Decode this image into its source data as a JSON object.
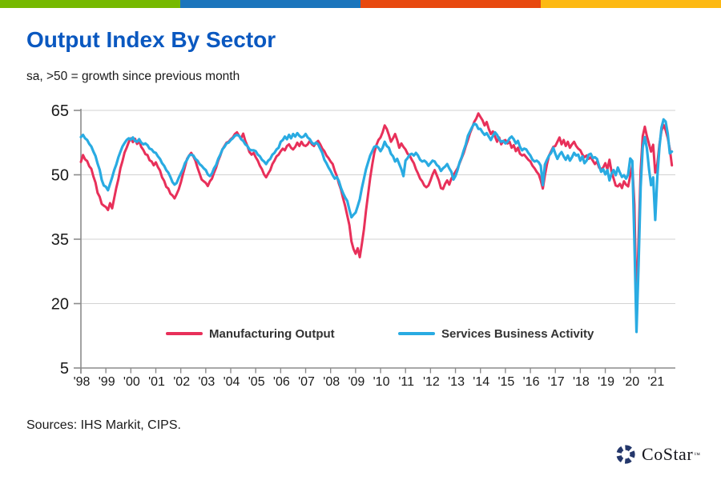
{
  "header": {
    "bar_colors": [
      "#76b900",
      "#1b75bc",
      "#e8490f",
      "#fdb913"
    ],
    "title": "Output Index By Sector",
    "subtitle": "sa, >50 = growth since previous month"
  },
  "footer": {
    "sources": "Sources: IHS Markit, CIPS.",
    "logo_text": "CoStar",
    "logo_tm": "TM",
    "logo_color": "#24376b"
  },
  "chart_data": {
    "type": "line",
    "title": "Output Index By Sector",
    "subtitle": "sa, >50 = growth since previous month",
    "xlabel": "",
    "ylabel": "",
    "ylim": [
      5,
      65
    ],
    "yticks": [
      65,
      50,
      35,
      20,
      5
    ],
    "gridlines": [
      65,
      50,
      35,
      20
    ],
    "grid_on": true,
    "x_start": "1998-01",
    "x_end": "2021-09",
    "x_interval": "monthly",
    "xtick_labels": [
      "'98",
      "'99",
      "'00",
      "'01",
      "'02",
      "'03",
      "'04",
      "'05",
      "'06",
      "'07",
      "'08",
      "'09",
      "'10",
      "'11",
      "'12",
      "'13",
      "'14",
      "'15",
      "'16",
      "'17",
      "'18",
      "'19",
      "'20",
      "'21"
    ],
    "legend_position": "bottom-inside",
    "axis_color": "#8c8c8c",
    "grid_color": "#d2d2d2",
    "tick_label_color": "#1a1a1a",
    "series": [
      {
        "name": "Manufacturing Output",
        "color": "#e8305a",
        "width": 3,
        "values": [
          53.0,
          54.6,
          53.6,
          53.2,
          52.0,
          51.4,
          49.6,
          48.2,
          45.8,
          44.9,
          43.2,
          42.8,
          42.5,
          41.8,
          43.4,
          42.2,
          44.6,
          47.0,
          49.0,
          51.6,
          53.2,
          55.2,
          56.3,
          57.6,
          58.5,
          57.6,
          58.4,
          57.2,
          57.9,
          56.5,
          55.8,
          54.8,
          54.6,
          53.4,
          53.1,
          52.2,
          52.9,
          51.8,
          51.0,
          49.4,
          48.6,
          47.2,
          46.8,
          45.6,
          45.2,
          44.5,
          45.5,
          46.6,
          48.2,
          50.1,
          51.9,
          53.7,
          54.5,
          55.1,
          54.3,
          53.3,
          51.7,
          50.3,
          48.9,
          48.5,
          48.1,
          47.4,
          48.5,
          49.1,
          50.5,
          51.7,
          53.3,
          54.5,
          55.9,
          56.7,
          57.5,
          57.7,
          58.3,
          58.7,
          59.5,
          59.9,
          59.1,
          58.5,
          59.6,
          57.9,
          56.7,
          55.3,
          54.7,
          55.1,
          54.1,
          53.3,
          52.1,
          51.3,
          50.1,
          49.4,
          50.3,
          51.1,
          52.5,
          53.3,
          54.3,
          54.7,
          55.5,
          56.1,
          55.7,
          56.7,
          57.1,
          56.3,
          55.9,
          56.5,
          57.5,
          56.7,
          57.7,
          56.9,
          56.7,
          57.1,
          57.9,
          57.1,
          56.7,
          57.5,
          57.9,
          57.1,
          56.1,
          55.5,
          54.5,
          53.9,
          53.1,
          52.5,
          50.9,
          49.7,
          47.9,
          46.5,
          44.5,
          42.7,
          40.5,
          38.3,
          34.5,
          32.7,
          31.6,
          32.9,
          30.8,
          33.9,
          37.3,
          41.7,
          45.5,
          49.3,
          52.3,
          55.1,
          56.9,
          58.1,
          58.7,
          59.9,
          61.5,
          60.7,
          59.3,
          57.7,
          58.5,
          59.5,
          58.1,
          56.3,
          57.3,
          56.5,
          55.9,
          54.9,
          54.5,
          53.5,
          52.7,
          51.3,
          50.3,
          49.1,
          48.5,
          47.5,
          47.1,
          47.5,
          48.7,
          50.1,
          51.1,
          49.9,
          48.7,
          46.9,
          46.7,
          47.9,
          48.7,
          47.7,
          49.1,
          49.9,
          50.7,
          51.5,
          52.7,
          53.9,
          55.1,
          56.7,
          58.1,
          59.7,
          60.9,
          62.3,
          63.1,
          64.3,
          63.5,
          62.7,
          61.5,
          62.3,
          60.7,
          59.5,
          60.1,
          58.9,
          57.7,
          58.7,
          57.1,
          57.9,
          58.1,
          57.3,
          57.7,
          56.3,
          56.9,
          55.5,
          56.3,
          54.9,
          54.5,
          54.7,
          54.1,
          53.5,
          53.1,
          52.1,
          51.5,
          50.7,
          50.1,
          48.7,
          46.8,
          49.9,
          52.5,
          54.5,
          55.5,
          56.5,
          56.7,
          57.7,
          58.7,
          57.1,
          58.1,
          56.7,
          57.7,
          56.3,
          57.1,
          57.7,
          56.7,
          56.1,
          55.7,
          54.7,
          54.1,
          54.5,
          53.7,
          54.1,
          53.3,
          52.5,
          53.1,
          51.7,
          51.3,
          51.7,
          52.7,
          51.3,
          53.5,
          50.7,
          49.1,
          47.5,
          47.3,
          47.9,
          46.9,
          48.5,
          47.7,
          47.3,
          49.8,
          52.2,
          43.0,
          18.0,
          35.0,
          51.0,
          59.0,
          61.2,
          59.0,
          57.2,
          55.4,
          57.0,
          50.5,
          52.5,
          57.0,
          60.2,
          61.6,
          60.4,
          58.6,
          56.0,
          52.2
        ]
      },
      {
        "name": "Services Business Activity",
        "color": "#29abe2",
        "width": 3.2,
        "values": [
          58.8,
          59.3,
          58.5,
          58.1,
          57.2,
          56.6,
          55.4,
          54.4,
          52.6,
          51.2,
          48.8,
          47.5,
          47.2,
          46.4,
          47.9,
          49.4,
          51.1,
          52.4,
          54.1,
          55.4,
          56.6,
          57.4,
          58.1,
          58.5,
          58.2,
          58.7,
          57.9,
          57.7,
          58.3,
          57.5,
          57.1,
          57.3,
          56.9,
          56.1,
          55.9,
          55.3,
          55.1,
          54.3,
          53.7,
          52.7,
          52.1,
          51.1,
          50.5,
          49.5,
          48.3,
          47.7,
          48.1,
          49.3,
          50.3,
          51.3,
          52.7,
          53.5,
          54.5,
          54.7,
          54.5,
          53.7,
          53.3,
          52.5,
          52.1,
          51.5,
          51.1,
          50.1,
          49.7,
          50.3,
          51.5,
          52.3,
          53.7,
          54.7,
          55.9,
          56.5,
          57.3,
          57.5,
          58.1,
          58.5,
          59.1,
          59.3,
          59.1,
          58.3,
          57.9,
          57.1,
          56.7,
          55.9,
          55.7,
          55.7,
          55.5,
          54.7,
          54.3,
          53.5,
          53.1,
          52.5,
          53.3,
          53.7,
          54.7,
          55.1,
          55.9,
          56.3,
          57.7,
          58.1,
          58.9,
          58.3,
          59.3,
          58.5,
          59.5,
          58.9,
          59.7,
          59.1,
          58.7,
          58.9,
          59.5,
          58.7,
          58.3,
          57.5,
          57.1,
          57.5,
          57.1,
          56.1,
          55.1,
          53.5,
          52.7,
          51.7,
          50.9,
          49.9,
          49.1,
          49.5,
          48.5,
          46.9,
          45.7,
          44.7,
          43.9,
          41.9,
          40.1,
          40.7,
          41.2,
          42.7,
          44.3,
          46.9,
          49.1,
          51.3,
          52.9,
          54.5,
          55.5,
          56.5,
          56.7,
          56.3,
          55.5,
          56.3,
          57.7,
          56.7,
          56.3,
          54.9,
          54.3,
          53.1,
          53.7,
          52.5,
          51.3,
          49.7,
          53.3,
          53.9,
          54.7,
          54.9,
          54.5,
          55.1,
          54.5,
          53.5,
          53.1,
          53.3,
          52.9,
          52.1,
          52.7,
          53.3,
          53.1,
          52.3,
          51.9,
          50.9,
          51.5,
          51.9,
          52.5,
          51.5,
          50.7,
          48.9,
          49.7,
          51.1,
          52.9,
          54.1,
          55.7,
          57.1,
          59.1,
          60.1,
          61.1,
          61.9,
          61.7,
          60.7,
          60.7,
          59.9,
          59.3,
          59.7,
          58.9,
          58.1,
          59.1,
          59.9,
          59.3,
          58.3,
          57.7,
          57.9,
          57.3,
          57.7,
          58.5,
          58.9,
          58.3,
          57.3,
          57.9,
          56.5,
          55.7,
          56.1,
          55.9,
          55.1,
          54.5,
          53.5,
          53.1,
          53.3,
          52.9,
          52.1,
          47.6,
          52.4,
          53.5,
          54.5,
          55.1,
          56.3,
          54.9,
          53.7,
          54.7,
          55.3,
          54.3,
          53.5,
          54.5,
          53.3,
          54.1,
          55.1,
          54.5,
          54.7,
          53.3,
          54.3,
          52.7,
          53.3,
          54.7,
          54.9,
          53.9,
          54.1,
          53.7,
          52.1,
          50.7,
          51.3,
          50.1,
          51.1,
          48.7,
          50.3,
          51.1,
          49.9,
          51.7,
          50.5,
          49.5,
          49.9,
          49.1,
          50.1,
          53.8,
          53.2,
          34.5,
          13.4,
          29.0,
          47.1,
          56.5,
          58.8,
          56.1,
          51.4,
          47.6,
          49.4,
          39.5,
          49.5,
          56.3,
          61.0,
          62.9,
          62.4,
          59.6,
          55.0,
          55.4
        ]
      }
    ]
  }
}
